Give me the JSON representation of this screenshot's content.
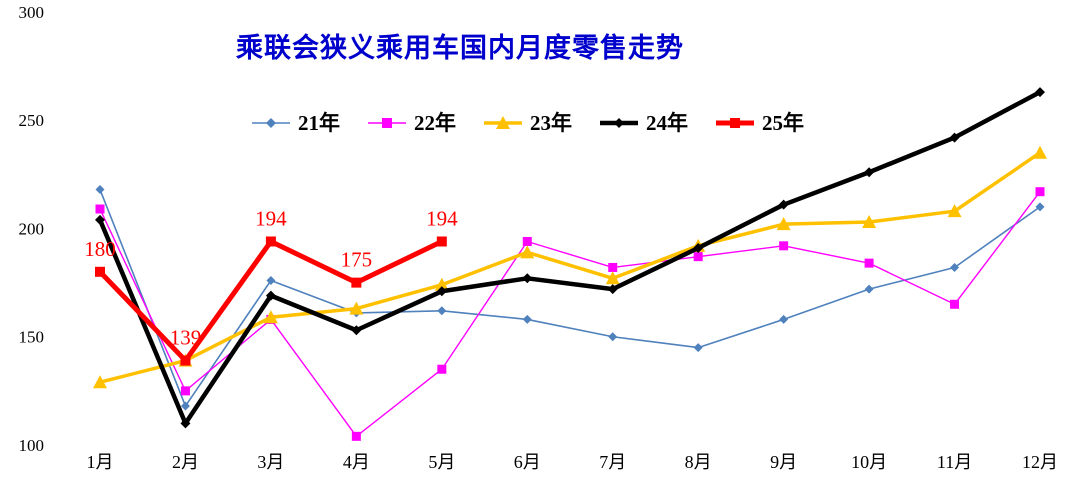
{
  "chart_data": {
    "type": "line",
    "title": "乘联会狭义乘用车国内月度零售走势",
    "title_color": "#0000cc",
    "categories": [
      "1月",
      "2月",
      "3月",
      "4月",
      "5月",
      "6月",
      "7月",
      "8月",
      "9月",
      "10月",
      "11月",
      "12月"
    ],
    "xlabel": "",
    "ylabel": "",
    "ylim": [
      100,
      300
    ],
    "yticks": [
      300,
      250,
      200,
      150,
      100
    ],
    "gridlines": false,
    "legend_position": "top",
    "series": [
      {
        "name": "21年",
        "color": "#4f81bd",
        "marker": "diamond",
        "line_width": 1.6,
        "values": [
          218,
          118,
          176,
          161,
          162,
          158,
          150,
          145,
          158,
          172,
          182,
          210
        ]
      },
      {
        "name": "22年",
        "color": "#ff00ff",
        "marker": "square",
        "line_width": 1.4,
        "values": [
          209,
          125,
          158,
          104,
          135,
          194,
          182,
          187,
          192,
          184,
          165,
          217
        ]
      },
      {
        "name": "23年",
        "color": "#ffc000",
        "marker": "triangle",
        "line_width": 3.5,
        "values": [
          129,
          139,
          159,
          163,
          174,
          189,
          177,
          192,
          202,
          203,
          208,
          235
        ]
      },
      {
        "name": "24年",
        "color": "#000000",
        "marker": "diamond",
        "line_width": 4.5,
        "values": [
          204,
          110,
          169,
          153,
          171,
          177,
          172,
          191,
          211,
          226,
          242,
          263
        ]
      },
      {
        "name": "25年",
        "color": "#ff0000",
        "marker": "square",
        "line_width": 5,
        "values": [
          180,
          139,
          194,
          175,
          194,
          null,
          null,
          null,
          null,
          null,
          null,
          null
        ],
        "show_data_labels": true,
        "data_labels": [
          "180",
          "139",
          "194",
          "175",
          "194"
        ],
        "data_label_color": "#ff0000"
      }
    ]
  }
}
